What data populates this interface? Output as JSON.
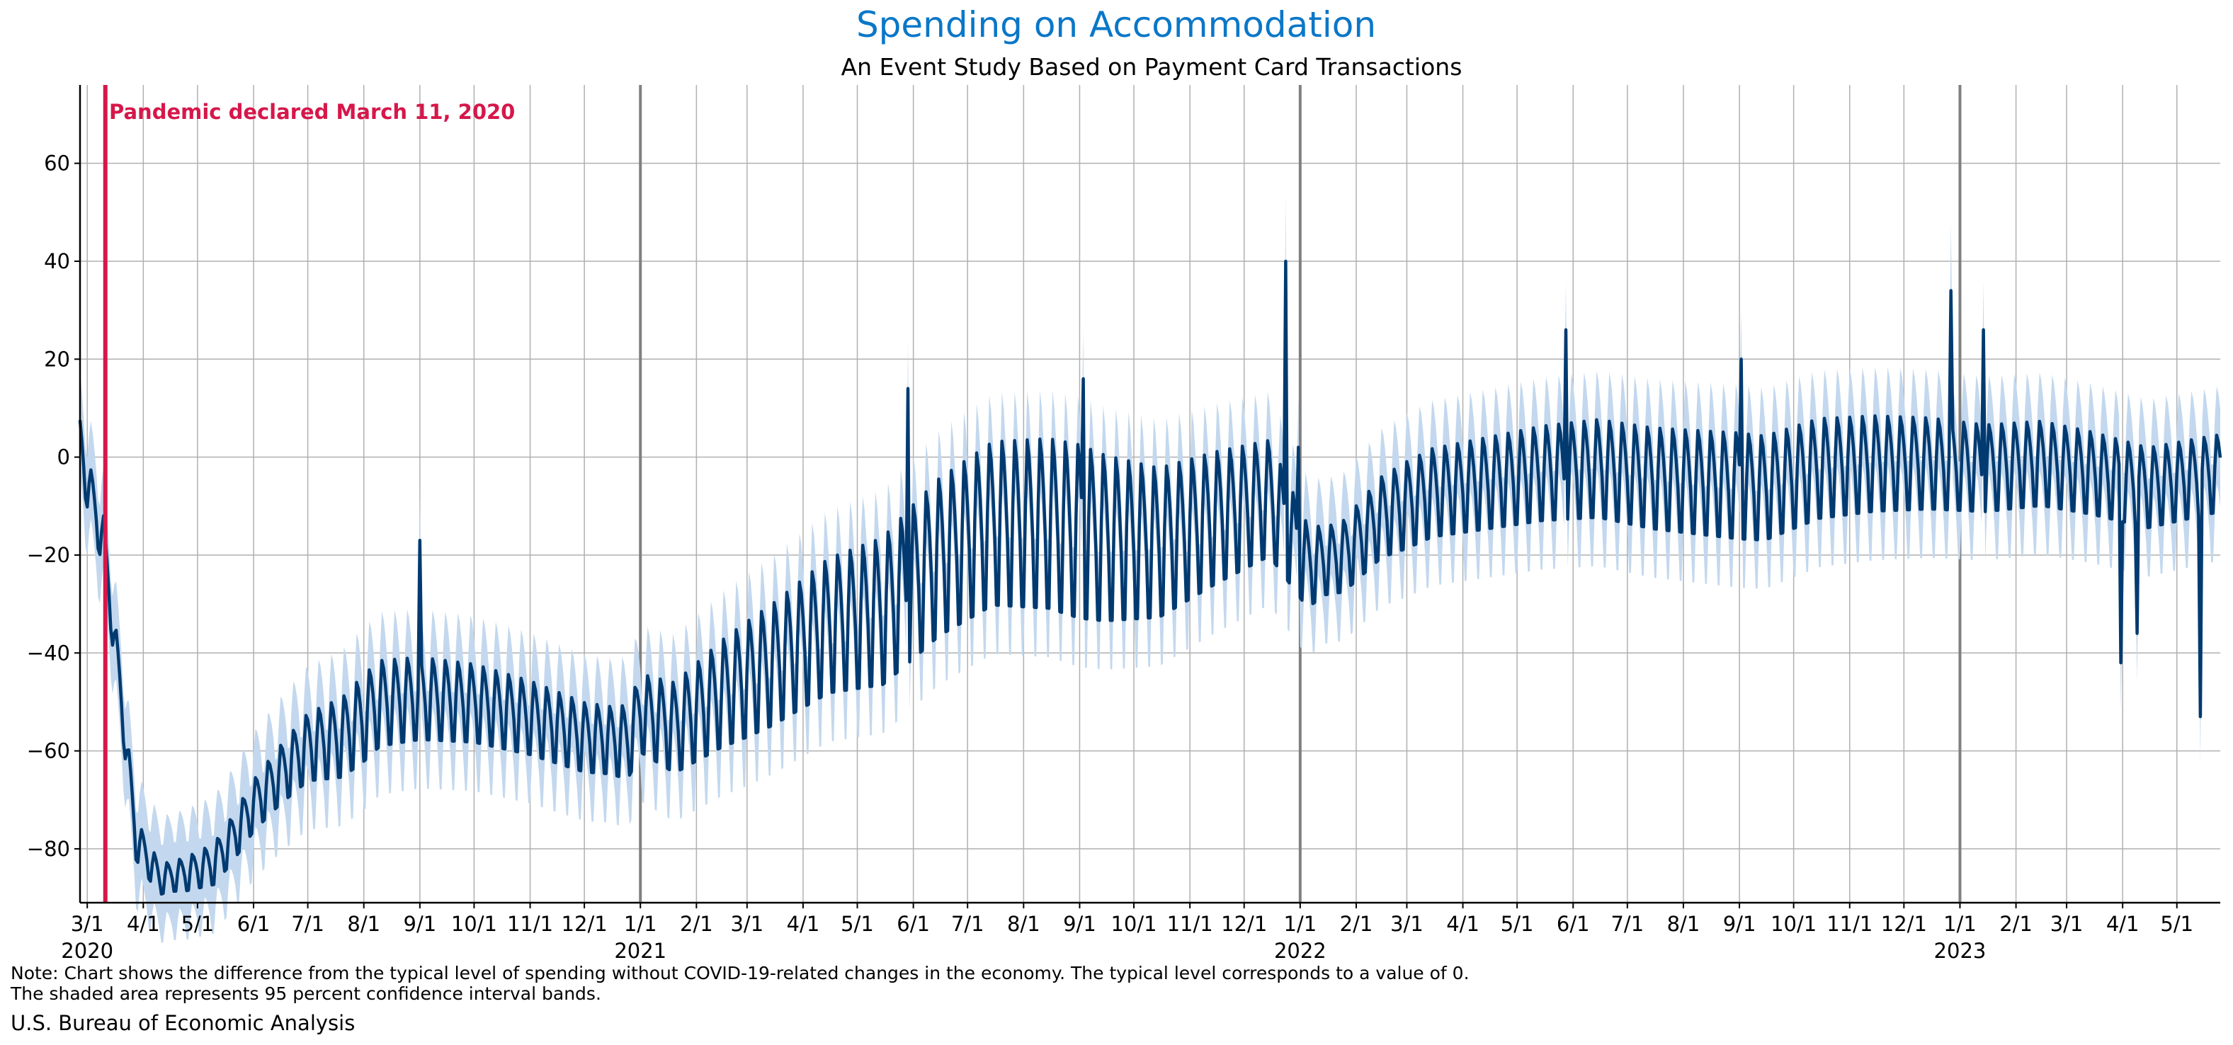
{
  "chart_data": {
    "type": "line",
    "title": "Spending on Accommodation",
    "subtitle": "An Event Study Based on Payment Card Transactions",
    "xlabel": "",
    "ylabel": "",
    "ylim": [
      -91,
      76
    ],
    "yticks": [
      -80,
      -60,
      -40,
      -20,
      0,
      20,
      40,
      60
    ],
    "y_tick_labels": [
      "−80",
      "−60",
      "−40",
      "−20",
      "0",
      "20",
      "40",
      "60"
    ],
    "x_start": "2020-02-26",
    "x_end": "2023-05-25",
    "month_tick_labels": [
      "3/1",
      "4/1",
      "5/1",
      "6/1",
      "7/1",
      "8/1",
      "9/1",
      "10/1",
      "11/1",
      "12/1",
      "1/1",
      "2/1",
      "3/1",
      "4/1",
      "5/1",
      "6/1",
      "7/1",
      "8/1",
      "9/1",
      "10/1",
      "11/1",
      "12/1",
      "1/1",
      "2/1",
      "3/1",
      "4/1",
      "5/1",
      "6/1",
      "7/1",
      "8/1",
      "9/1",
      "10/1",
      "11/1",
      "12/1",
      "1/1",
      "2/1",
      "3/1",
      "4/1",
      "5/1"
    ],
    "month_tick_dates": [
      "2020-03-01",
      "2020-04-01",
      "2020-05-01",
      "2020-06-01",
      "2020-07-01",
      "2020-08-01",
      "2020-09-01",
      "2020-10-01",
      "2020-11-01",
      "2020-12-01",
      "2021-01-01",
      "2021-02-01",
      "2021-03-01",
      "2021-04-01",
      "2021-05-01",
      "2021-06-01",
      "2021-07-01",
      "2021-08-01",
      "2021-09-01",
      "2021-10-01",
      "2021-11-01",
      "2021-12-01",
      "2022-01-01",
      "2022-02-01",
      "2022-03-01",
      "2022-04-01",
      "2022-05-01",
      "2022-06-01",
      "2022-07-01",
      "2022-08-01",
      "2022-09-01",
      "2022-10-01",
      "2022-11-01",
      "2022-12-01",
      "2023-01-01",
      "2023-02-01",
      "2023-03-01",
      "2023-04-01",
      "2023-05-01"
    ],
    "year_labels": [
      {
        "label": "2020",
        "date": "2020-03-01"
      },
      {
        "label": "2021",
        "date": "2021-01-01"
      },
      {
        "label": "2022",
        "date": "2022-01-01"
      },
      {
        "label": "2023",
        "date": "2023-01-01"
      }
    ],
    "year_lines": [
      "2021-01-01",
      "2022-01-01",
      "2023-01-01"
    ],
    "event": {
      "date": "2020-03-11",
      "label": "Pandemic declared March 11, 2020",
      "color": "#d6174a"
    },
    "grid": true,
    "series": [
      {
        "name": "",
        "color": "#003a70",
        "daily_pattern": "weekly oscillation",
        "weekly_amplitude_points": [
          {
            "date": "2020-02-26",
            "value": 6
          },
          {
            "date": "2020-03-15",
            "value": 5
          },
          {
            "date": "2020-04-15",
            "value": 3
          },
          {
            "date": "2020-06-15",
            "value": 6
          },
          {
            "date": "2020-08-01",
            "value": 9
          },
          {
            "date": "2020-12-15",
            "value": 7
          },
          {
            "date": "2021-03-01",
            "value": 12
          },
          {
            "date": "2021-06-01",
            "value": 16
          },
          {
            "date": "2021-09-01",
            "value": 18
          },
          {
            "date": "2021-12-15",
            "value": 12
          },
          {
            "date": "2022-01-15",
            "value": 7
          },
          {
            "date": "2022-03-01",
            "value": 9
          },
          {
            "date": "2022-06-01",
            "value": 10
          },
          {
            "date": "2022-09-01",
            "value": 11
          },
          {
            "date": "2023-01-15",
            "value": 9
          },
          {
            "date": "2023-05-25",
            "value": 8
          }
        ],
        "trend_points": [
          {
            "date": "2020-02-26",
            "value": 3
          },
          {
            "date": "2020-03-03",
            "value": -8
          },
          {
            "date": "2020-03-10",
            "value": -17
          },
          {
            "date": "2020-03-14",
            "value": -30
          },
          {
            "date": "2020-03-20",
            "value": -50
          },
          {
            "date": "2020-03-28",
            "value": -78
          },
          {
            "date": "2020-04-10",
            "value": -86
          },
          {
            "date": "2020-04-25",
            "value": -85
          },
          {
            "date": "2020-05-10",
            "value": -83
          },
          {
            "date": "2020-05-20",
            "value": -78
          },
          {
            "date": "2020-06-01",
            "value": -71
          },
          {
            "date": "2020-06-15",
            "value": -65
          },
          {
            "date": "2020-07-01",
            "value": -59
          },
          {
            "date": "2020-07-20",
            "value": -57
          },
          {
            "date": "2020-08-10",
            "value": -50
          },
          {
            "date": "2020-09-01",
            "value": -49
          },
          {
            "date": "2020-10-01",
            "value": -50
          },
          {
            "date": "2020-11-01",
            "value": -53
          },
          {
            "date": "2020-12-01",
            "value": -57
          },
          {
            "date": "2020-12-25",
            "value": -58
          },
          {
            "date": "2021-01-01",
            "value": -52
          },
          {
            "date": "2021-01-20",
            "value": -55
          },
          {
            "date": "2021-02-15",
            "value": -48
          },
          {
            "date": "2021-03-15",
            "value": -42
          },
          {
            "date": "2021-04-15",
            "value": -34
          },
          {
            "date": "2021-05-15",
            "value": -31
          },
          {
            "date": "2021-06-15",
            "value": -20
          },
          {
            "date": "2021-07-15",
            "value": -13
          },
          {
            "date": "2021-08-15",
            "value": -13
          },
          {
            "date": "2021-09-15",
            "value": -16
          },
          {
            "date": "2021-10-15",
            "value": -17
          },
          {
            "date": "2021-11-15",
            "value": -12
          },
          {
            "date": "2021-12-15",
            "value": -8
          },
          {
            "date": "2022-01-05",
            "value": -22
          },
          {
            "date": "2022-01-25",
            "value": -20
          },
          {
            "date": "2022-02-15",
            "value": -12
          },
          {
            "date": "2022-03-15",
            "value": -7
          },
          {
            "date": "2022-04-15",
            "value": -5
          },
          {
            "date": "2022-05-15",
            "value": -3
          },
          {
            "date": "2022-06-15",
            "value": -2
          },
          {
            "date": "2022-07-15",
            "value": -4
          },
          {
            "date": "2022-08-15",
            "value": -5
          },
          {
            "date": "2022-09-15",
            "value": -6
          },
          {
            "date": "2022-10-15",
            "value": -2
          },
          {
            "date": "2022-11-15",
            "value": -1
          },
          {
            "date": "2022-12-15",
            "value": -1
          },
          {
            "date": "2023-01-15",
            "value": -2
          },
          {
            "date": "2023-02-15",
            "value": -1
          },
          {
            "date": "2023-03-15",
            "value": -3
          },
          {
            "date": "2023-04-15",
            "value": -6
          },
          {
            "date": "2023-05-25",
            "value": -3
          }
        ],
        "spikes": [
          {
            "date": "2020-09-01",
            "value": -17
          },
          {
            "date": "2021-05-29",
            "value": 14
          },
          {
            "date": "2021-09-03",
            "value": 16
          },
          {
            "date": "2021-12-24",
            "value": 40
          },
          {
            "date": "2021-12-31",
            "value": 2
          },
          {
            "date": "2022-05-28",
            "value": 26
          },
          {
            "date": "2022-09-02",
            "value": 20
          },
          {
            "date": "2022-12-27",
            "value": 34
          },
          {
            "date": "2023-01-14",
            "value": 26
          },
          {
            "date": "2023-03-31",
            "value": -42
          },
          {
            "date": "2023-04-09",
            "value": -36
          },
          {
            "date": "2023-05-14",
            "value": -53
          }
        ]
      }
    ],
    "confidence_band": {
      "label": "95 percent confidence interval bands",
      "color": "#c3d8ee",
      "half_width": 10
    }
  },
  "footer": {
    "note_line1": "Note: Chart shows the difference from the typical level of spending without COVID-19-related changes in the economy. The typical level corresponds to a value of 0.",
    "note_line2": "The shaded area represents 95 percent confidence interval bands.",
    "source": "U.S. Bureau of Economic Analysis"
  }
}
